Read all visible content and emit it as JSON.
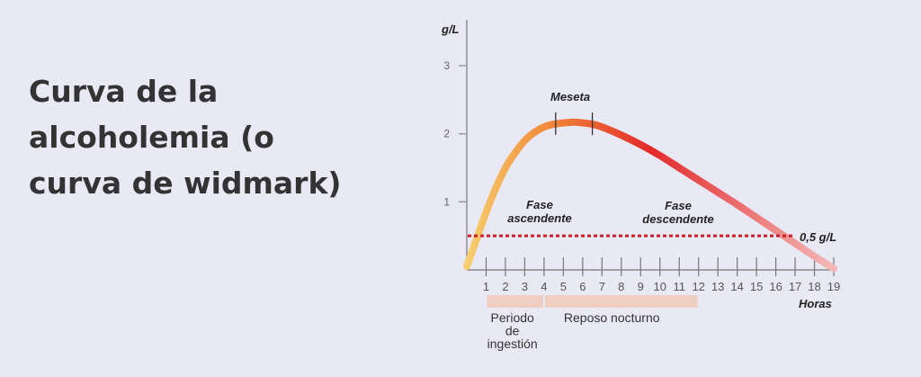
{
  "heading": "Curva de la alcoholemia (o curva de widmark)",
  "chart_data": {
    "type": "line",
    "title": "",
    "ylabel": "g/L",
    "xlabel": "Horas",
    "xlim": [
      0,
      19
    ],
    "ylim": [
      0,
      3.2
    ],
    "xticks": [
      1,
      2,
      3,
      4,
      5,
      6,
      7,
      8,
      9,
      10,
      11,
      12,
      13,
      14,
      15,
      16,
      17,
      18,
      19
    ],
    "yticks": [
      1,
      2,
      3
    ],
    "series": [
      {
        "values_x": [
          0,
          0.5,
          1,
          1.5,
          2,
          2.5,
          3,
          3.5,
          4,
          4.5,
          5,
          5.5,
          6,
          6.5,
          7,
          8,
          9,
          10,
          11,
          12,
          13,
          14,
          15,
          16,
          17,
          18,
          19
        ],
        "values_y": [
          0.05,
          0.45,
          0.85,
          1.2,
          1.5,
          1.72,
          1.9,
          2.02,
          2.1,
          2.14,
          2.16,
          2.17,
          2.16,
          2.14,
          2.1,
          1.98,
          1.84,
          1.68,
          1.5,
          1.32,
          1.14,
          0.96,
          0.77,
          0.58,
          0.39,
          0.2,
          0.02
        ]
      }
    ],
    "reference_line": {
      "y": 0.5,
      "label": "0,5 g/L",
      "color": "#cc1f2a"
    },
    "phase_marks_x": [
      4.6,
      6.5
    ],
    "gradient_colors": [
      "#f8cf6e",
      "#f08a3a",
      "#e32a2a",
      "#f4b8b8"
    ],
    "annotations": {
      "plateau": "Meseta",
      "ascending": [
        "Fase",
        "ascendente"
      ],
      "descending": [
        "Fase",
        "descendente"
      ]
    },
    "bands": [
      {
        "from": 1,
        "to": 4,
        "label": [
          "Periodo",
          "de",
          "ingestión"
        ],
        "color": "#efcfc2"
      },
      {
        "from": 4,
        "to": 12,
        "label": [
          "Reposo nocturno"
        ],
        "color": "#efcfc2"
      }
    ]
  }
}
